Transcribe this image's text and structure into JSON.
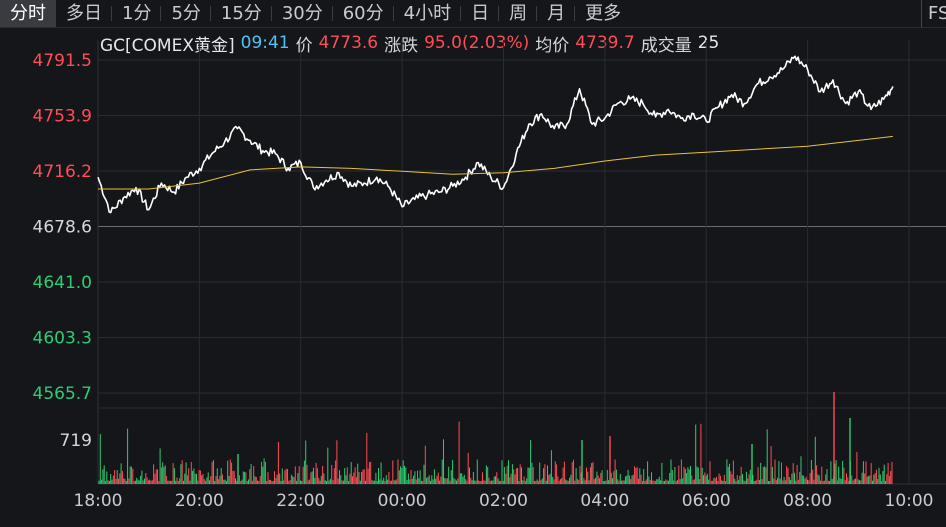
{
  "tabs": [
    {
      "label": "分时",
      "active": true
    },
    {
      "label": "多日"
    },
    {
      "label": "1分"
    },
    {
      "label": "5分"
    },
    {
      "label": "15分"
    },
    {
      "label": "30分"
    },
    {
      "label": "60分"
    },
    {
      "label": "4小时"
    },
    {
      "label": "日"
    },
    {
      "label": "周"
    },
    {
      "label": "月"
    },
    {
      "label": "更多"
    }
  ],
  "tab_edge_label": "FS",
  "info": {
    "symbol": "GC[COMEX黄金]",
    "time": "09:41",
    "price_label": "价",
    "price": "4773.6",
    "change_label": "涨跌",
    "change": "95.0(2.03%)",
    "avg_label": "均价",
    "avg": "4739.7",
    "volume_label": "成交量",
    "volume": "25"
  },
  "colors": {
    "up": "#ff4d55",
    "down": "#2ecc71",
    "price_line": "#ffffff",
    "avg_line": "#e8c23a",
    "grid": "#2a2b31",
    "time_axis": "#c9cbd1"
  },
  "chart_data": {
    "type": "line",
    "title": "",
    "xlabel": "",
    "ylabel": "",
    "x_ticks": [
      "18:00",
      "20:00",
      "22:00",
      "00:00",
      "02:00",
      "04:00",
      "06:00",
      "08:00",
      "10:00"
    ],
    "y_ticks": [
      {
        "value": 4791.5,
        "direction": "up"
      },
      {
        "value": 4753.9,
        "direction": "up"
      },
      {
        "value": 4716.2,
        "direction": "up"
      },
      {
        "value": 4678.6,
        "direction": "flat"
      },
      {
        "value": 4641.0,
        "direction": "down"
      },
      {
        "value": 4603.3,
        "direction": "down"
      },
      {
        "value": 4565.7,
        "direction": "down"
      }
    ],
    "ylim": [
      4565.7,
      4791.5
    ],
    "reference_price": 4678.6,
    "price_series": {
      "x": [
        "18:00",
        "18:15",
        "18:30",
        "18:45",
        "19:00",
        "19:15",
        "19:30",
        "19:45",
        "20:00",
        "20:15",
        "20:30",
        "20:45",
        "21:00",
        "21:15",
        "21:30",
        "21:45",
        "22:00",
        "22:15",
        "22:30",
        "22:45",
        "23:00",
        "23:15",
        "23:30",
        "23:45",
        "00:00",
        "00:15",
        "00:30",
        "00:45",
        "01:00",
        "01:15",
        "01:30",
        "01:45",
        "02:00",
        "02:15",
        "02:30",
        "02:45",
        "03:00",
        "03:15",
        "03:30",
        "03:45",
        "04:00",
        "04:15",
        "04:30",
        "04:45",
        "05:00",
        "05:15",
        "05:30",
        "05:45",
        "06:00",
        "06:15",
        "06:30",
        "06:45",
        "07:00",
        "07:15",
        "07:30",
        "07:45",
        "08:00",
        "08:15",
        "08:30",
        "08:45",
        "09:00",
        "09:15",
        "09:30",
        "09:41"
      ],
      "y": [
        4712,
        4688,
        4698,
        4705,
        4690,
        4708,
        4702,
        4712,
        4718,
        4728,
        4736,
        4745,
        4737,
        4730,
        4728,
        4718,
        4722,
        4705,
        4710,
        4715,
        4706,
        4708,
        4712,
        4705,
        4692,
        4697,
        4700,
        4702,
        4706,
        4712,
        4722,
        4712,
        4705,
        4728,
        4748,
        4755,
        4745,
        4748,
        4772,
        4748,
        4752,
        4762,
        4765,
        4762,
        4753,
        4758,
        4752,
        4755,
        4750,
        4760,
        4768,
        4762,
        4775,
        4780,
        4785,
        4794,
        4785,
        4770,
        4778,
        4762,
        4770,
        4758,
        4765,
        4773.6
      ]
    },
    "avg_series": {
      "x": [
        "18:00",
        "19:00",
        "20:00",
        "21:00",
        "22:00",
        "23:00",
        "00:00",
        "01:00",
        "02:00",
        "03:00",
        "04:00",
        "05:00",
        "06:00",
        "07:00",
        "08:00",
        "09:00",
        "09:41"
      ],
      "y": [
        4704,
        4704,
        4708,
        4717,
        4719,
        4718,
        4716,
        4714,
        4715,
        4718,
        4723,
        4727,
        4729,
        4731,
        4733,
        4737,
        4739.7
      ]
    },
    "volume": {
      "type": "bar",
      "label": "719",
      "max": 719,
      "series": [
        {
          "name": "",
          "direction": "up"
        },
        {
          "name": "",
          "direction": "down"
        }
      ]
    }
  }
}
